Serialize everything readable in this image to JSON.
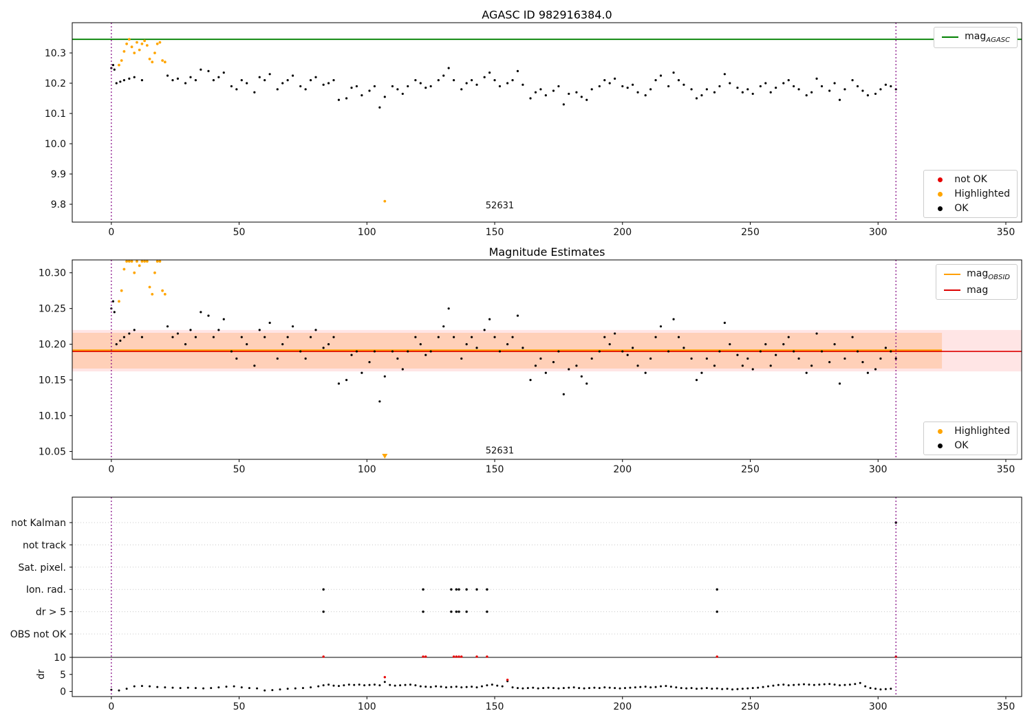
{
  "colors": {
    "ok": "#000000",
    "highlighted": "#ffa500",
    "not_ok": "#e60000",
    "green": "#008000",
    "orange_line": "#ff9f00",
    "red_line": "#dd0000",
    "vline": "#800080",
    "band_red": "rgba(255,0,0,0.10)",
    "band_orange": "rgba(255,160,80,0.30)"
  },
  "legends": [
    {
      "chart": 0,
      "pos": "top-right",
      "items": [
        {
          "marker": "line",
          "color": "green",
          "label": "mag",
          "sub": "AGASC"
        }
      ]
    },
    {
      "chart": 0,
      "pos": "bottom-right",
      "items": [
        {
          "marker": "dot",
          "color": "not_ok",
          "label": "not OK"
        },
        {
          "marker": "dot",
          "color": "highlighted",
          "label": "Highlighted"
        },
        {
          "marker": "dot",
          "color": "ok",
          "label": "OK"
        }
      ]
    },
    {
      "chart": 1,
      "pos": "top-right",
      "items": [
        {
          "marker": "line",
          "color": "orange_line",
          "label": "mag",
          "sub": "OBSID"
        },
        {
          "marker": "line",
          "color": "red_line",
          "label": "mag"
        }
      ]
    },
    {
      "chart": 1,
      "pos": "bottom-right",
      "items": [
        {
          "marker": "dot",
          "color": "highlighted",
          "label": "Highlighted"
        },
        {
          "marker": "dot",
          "color": "ok",
          "label": "OK"
        }
      ]
    }
  ],
  "chart_data": {
    "charts": [
      {
        "title": "AGASC ID 982916384.0",
        "type": "scatter",
        "xlim": [
          -15.3,
          356.2
        ],
        "ylim": [
          9.741,
          10.4
        ],
        "xticks": [
          0,
          50,
          100,
          150,
          200,
          250,
          300,
          350
        ],
        "yticks": [
          [
            9.8,
            "9.8"
          ],
          [
            9.9,
            "9.9"
          ],
          [
            10.0,
            "10.0"
          ],
          [
            10.1,
            "10.1"
          ],
          [
            10.2,
            "10.2"
          ],
          [
            10.3,
            "10.3"
          ]
        ],
        "vlines": [
          0,
          307
        ],
        "bands": [],
        "hlines": [
          {
            "y": 10.345,
            "color": "green",
            "width": 1.8
          }
        ],
        "point_series": [
          {
            "data": "ok_points",
            "color": "#000000",
            "r": 1.6
          },
          {
            "data": "highlighted_points",
            "color": "#ffa500",
            "r": 1.9
          }
        ],
        "annotation": {
          "x": 152,
          "y": 9.787,
          "text": "52631"
        }
      },
      {
        "title": "Magnitude Estimates",
        "type": "scatter",
        "xlim": [
          -15.3,
          356.2
        ],
        "ylim": [
          10.039,
          10.318
        ],
        "xticks": [
          0,
          50,
          100,
          150,
          200,
          250,
          300,
          350
        ],
        "yticks": [
          [
            10.05,
            "10.05"
          ],
          [
            10.1,
            "10.10"
          ],
          [
            10.15,
            "10.15"
          ],
          [
            10.2,
            "10.20"
          ],
          [
            10.25,
            "10.25"
          ],
          [
            10.3,
            "10.30"
          ]
        ],
        "vlines": [
          0,
          307
        ],
        "bands": [
          {
            "x0": -15.3,
            "x1": 356.2,
            "y0": 10.162,
            "y1": 10.22,
            "color": "band_red"
          },
          {
            "x0": -15.3,
            "x1": 325.0,
            "y0": 10.166,
            "y1": 10.216,
            "color": "band_orange"
          }
        ],
        "hlines": [
          {
            "y": 10.191,
            "color": "orange_line",
            "width": 3.5,
            "x0": -15.3,
            "x1": 325.0
          },
          {
            "y": 10.19,
            "color": "red_line",
            "width": 1.6
          }
        ],
        "point_series": [
          {
            "data": "ok_points",
            "color": "#000000",
            "r": 1.6,
            "clip": true
          },
          {
            "data": "highlighted_points",
            "color": "#ffa500",
            "r": 1.9,
            "clip": true
          }
        ],
        "annotation": {
          "x": 152,
          "y": 10.047,
          "text": "52631"
        }
      },
      {
        "title": "",
        "type": "flags",
        "xlim": [
          -15.3,
          356.2
        ],
        "xticks": [
          0,
          50,
          100,
          150,
          200,
          250,
          300,
          350
        ],
        "vlines": [
          0,
          307
        ],
        "rows": [
          "not Kalman",
          "not track",
          "Sat. pixel.",
          "Ion. rad.",
          "dr > 5",
          "OBS not OK"
        ],
        "row_points": {
          "Ion. rad.": "ion_rad_x",
          "dr > 5": "dr5_x",
          "not Kalman": "not_kalman_x"
        },
        "dr_ticks": [
          [
            10,
            "10"
          ],
          [
            5,
            "5"
          ],
          [
            0,
            "0"
          ]
        ],
        "dr_label": "dr",
        "dr_hline": 10
      }
    ],
    "ok_points": [
      [
        0,
        10.25
      ],
      [
        0.7,
        10.26
      ],
      [
        1.2,
        10.245
      ],
      [
        2,
        10.2
      ],
      [
        3.5,
        10.205
      ],
      [
        5,
        10.21
      ],
      [
        7,
        10.215
      ],
      [
        9,
        10.22
      ],
      [
        12,
        10.21
      ],
      [
        22,
        10.225
      ],
      [
        24,
        10.21
      ],
      [
        26,
        10.215
      ],
      [
        29,
        10.2
      ],
      [
        31,
        10.22
      ],
      [
        33,
        10.21
      ],
      [
        35,
        10.245
      ],
      [
        38,
        10.24
      ],
      [
        40,
        10.21
      ],
      [
        42,
        10.22
      ],
      [
        44,
        10.235
      ],
      [
        47,
        10.19
      ],
      [
        49,
        10.18
      ],
      [
        51,
        10.21
      ],
      [
        53,
        10.2
      ],
      [
        56,
        10.17
      ],
      [
        58,
        10.22
      ],
      [
        60,
        10.21
      ],
      [
        62,
        10.23
      ],
      [
        65,
        10.18
      ],
      [
        67,
        10.2
      ],
      [
        69,
        10.21
      ],
      [
        71,
        10.225
      ],
      [
        74,
        10.19
      ],
      [
        76,
        10.18
      ],
      [
        78,
        10.21
      ],
      [
        80,
        10.22
      ],
      [
        83,
        10.195
      ],
      [
        85,
        10.2
      ],
      [
        87,
        10.21
      ],
      [
        89,
        10.145
      ],
      [
        92,
        10.15
      ],
      [
        94,
        10.185
      ],
      [
        96,
        10.19
      ],
      [
        98,
        10.16
      ],
      [
        101,
        10.175
      ],
      [
        103,
        10.19
      ],
      [
        105,
        10.12
      ],
      [
        107,
        10.155
      ],
      [
        110,
        10.19
      ],
      [
        112,
        10.18
      ],
      [
        114,
        10.165
      ],
      [
        116,
        10.19
      ],
      [
        119,
        10.21
      ],
      [
        121,
        10.2
      ],
      [
        123,
        10.185
      ],
      [
        125,
        10.19
      ],
      [
        128,
        10.21
      ],
      [
        130,
        10.225
      ],
      [
        132,
        10.25
      ],
      [
        134,
        10.21
      ],
      [
        137,
        10.18
      ],
      [
        139,
        10.2
      ],
      [
        141,
        10.21
      ],
      [
        143,
        10.195
      ],
      [
        146,
        10.22
      ],
      [
        148,
        10.235
      ],
      [
        150,
        10.21
      ],
      [
        152,
        10.19
      ],
      [
        155,
        10.2
      ],
      [
        157,
        10.21
      ],
      [
        159,
        10.24
      ],
      [
        161,
        10.195
      ],
      [
        164,
        10.15
      ],
      [
        166,
        10.17
      ],
      [
        168,
        10.18
      ],
      [
        170,
        10.16
      ],
      [
        173,
        10.175
      ],
      [
        175,
        10.19
      ],
      [
        177,
        10.13
      ],
      [
        179,
        10.165
      ],
      [
        182,
        10.17
      ],
      [
        184,
        10.155
      ],
      [
        186,
        10.145
      ],
      [
        188,
        10.18
      ],
      [
        191,
        10.19
      ],
      [
        193,
        10.21
      ],
      [
        195,
        10.2
      ],
      [
        197,
        10.215
      ],
      [
        200,
        10.19
      ],
      [
        202,
        10.185
      ],
      [
        204,
        10.195
      ],
      [
        206,
        10.17
      ],
      [
        209,
        10.16
      ],
      [
        211,
        10.18
      ],
      [
        213,
        10.21
      ],
      [
        215,
        10.225
      ],
      [
        218,
        10.19
      ],
      [
        220,
        10.235
      ],
      [
        222,
        10.21
      ],
      [
        224,
        10.195
      ],
      [
        227,
        10.18
      ],
      [
        229,
        10.15
      ],
      [
        231,
        10.16
      ],
      [
        233,
        10.18
      ],
      [
        236,
        10.17
      ],
      [
        238,
        10.19
      ],
      [
        240,
        10.23
      ],
      [
        242,
        10.2
      ],
      [
        245,
        10.185
      ],
      [
        247,
        10.17
      ],
      [
        249,
        10.18
      ],
      [
        251,
        10.165
      ],
      [
        254,
        10.19
      ],
      [
        256,
        10.2
      ],
      [
        258,
        10.17
      ],
      [
        260,
        10.185
      ],
      [
        263,
        10.2
      ],
      [
        265,
        10.21
      ],
      [
        267,
        10.19
      ],
      [
        269,
        10.18
      ],
      [
        272,
        10.16
      ],
      [
        274,
        10.17
      ],
      [
        276,
        10.215
      ],
      [
        278,
        10.19
      ],
      [
        281,
        10.175
      ],
      [
        283,
        10.2
      ],
      [
        285,
        10.145
      ],
      [
        287,
        10.18
      ],
      [
        290,
        10.21
      ],
      [
        292,
        10.19
      ],
      [
        294,
        10.175
      ],
      [
        296,
        10.16
      ],
      [
        299,
        10.165
      ],
      [
        301,
        10.18
      ],
      [
        303,
        10.195
      ],
      [
        305,
        10.19
      ],
      [
        307,
        10.18
      ]
    ],
    "highlighted_points": [
      [
        3,
        10.26
      ],
      [
        4,
        10.275
      ],
      [
        5,
        10.305
      ],
      [
        6,
        10.33
      ],
      [
        7,
        10.345
      ],
      [
        8,
        10.32
      ],
      [
        9,
        10.3
      ],
      [
        10,
        10.335
      ],
      [
        11,
        10.31
      ],
      [
        12,
        10.33
      ],
      [
        13,
        10.34
      ],
      [
        14,
        10.325
      ],
      [
        15,
        10.28
      ],
      [
        16,
        10.27
      ],
      [
        17,
        10.3
      ],
      [
        18,
        10.33
      ],
      [
        19,
        10.335
      ],
      [
        20,
        10.275
      ],
      [
        21,
        10.27
      ],
      [
        107,
        9.81
      ]
    ],
    "ion_rad_x": [
      83,
      122,
      133,
      135,
      136,
      139,
      143,
      147,
      237
    ],
    "dr5_x": [
      83,
      122,
      133,
      135,
      136,
      139,
      147,
      237
    ],
    "not_kalman_x": [
      307
    ],
    "dr_points": [
      [
        0,
        0.5
      ],
      [
        3,
        0.3
      ],
      [
        6,
        0.8
      ],
      [
        9,
        1.5
      ],
      [
        12,
        1.6
      ],
      [
        15,
        1.5
      ],
      [
        18,
        1.3
      ],
      [
        21,
        1.2
      ],
      [
        24,
        1.1
      ],
      [
        27,
        1.0
      ],
      [
        30,
        1.1
      ],
      [
        33,
        1.0
      ],
      [
        36,
        0.9
      ],
      [
        39,
        1.0
      ],
      [
        42,
        1.2
      ],
      [
        45,
        1.4
      ],
      [
        48,
        1.5
      ],
      [
        51,
        1.2
      ],
      [
        54,
        1.0
      ],
      [
        57,
        0.9
      ],
      [
        60,
        0.3
      ],
      [
        63,
        0.4
      ],
      [
        66,
        0.6
      ],
      [
        69,
        0.8
      ],
      [
        72,
        0.9
      ],
      [
        75,
        1.0
      ],
      [
        78,
        1.2
      ],
      [
        81,
        1.5
      ],
      [
        83,
        1.8
      ],
      [
        85,
        2.0
      ],
      [
        87,
        1.7
      ],
      [
        89,
        1.6
      ],
      [
        91,
        1.8
      ],
      [
        93,
        2.0
      ],
      [
        95,
        1.9
      ],
      [
        97,
        2.0
      ],
      [
        99,
        1.8
      ],
      [
        101,
        1.9
      ],
      [
        103,
        2.0
      ],
      [
        105,
        1.8
      ],
      [
        107,
        2.8
      ],
      [
        109,
        1.9
      ],
      [
        111,
        1.7
      ],
      [
        113,
        1.8
      ],
      [
        115,
        1.9
      ],
      [
        117,
        2.0
      ],
      [
        119,
        1.8
      ],
      [
        121,
        1.5
      ],
      [
        123,
        1.4
      ],
      [
        125,
        1.3
      ],
      [
        127,
        1.5
      ],
      [
        129,
        1.4
      ],
      [
        131,
        1.2
      ],
      [
        133,
        1.3
      ],
      [
        135,
        1.4
      ],
      [
        137,
        1.2
      ],
      [
        139,
        1.3
      ],
      [
        141,
        1.4
      ],
      [
        143,
        1.2
      ],
      [
        145,
        1.5
      ],
      [
        147,
        1.8
      ],
      [
        149,
        2.0
      ],
      [
        151,
        1.7
      ],
      [
        153,
        1.5
      ],
      [
        155,
        3.0
      ],
      [
        157,
        1.2
      ],
      [
        159,
        1.0
      ],
      [
        161,
        0.9
      ],
      [
        163,
        1.0
      ],
      [
        165,
        1.1
      ],
      [
        167,
        0.9
      ],
      [
        169,
        1.0
      ],
      [
        171,
        1.1
      ],
      [
        173,
        1.0
      ],
      [
        175,
        0.9
      ],
      [
        177,
        1.0
      ],
      [
        179,
        1.1
      ],
      [
        181,
        1.2
      ],
      [
        183,
        1.0
      ],
      [
        185,
        0.9
      ],
      [
        187,
        1.0
      ],
      [
        189,
        1.1
      ],
      [
        191,
        1.0
      ],
      [
        193,
        1.2
      ],
      [
        195,
        1.1
      ],
      [
        197,
        1.0
      ],
      [
        199,
        0.9
      ],
      [
        201,
        1.0
      ],
      [
        203,
        1.1
      ],
      [
        205,
        1.2
      ],
      [
        207,
        1.3
      ],
      [
        209,
        1.4
      ],
      [
        211,
        1.2
      ],
      [
        213,
        1.3
      ],
      [
        215,
        1.5
      ],
      [
        217,
        1.6
      ],
      [
        219,
        1.4
      ],
      [
        221,
        1.2
      ],
      [
        223,
        1.0
      ],
      [
        225,
        0.9
      ],
      [
        227,
        1.0
      ],
      [
        229,
        0.8
      ],
      [
        231,
        0.9
      ],
      [
        233,
        1.0
      ],
      [
        235,
        0.8
      ],
      [
        237,
        0.9
      ],
      [
        239,
        0.7
      ],
      [
        241,
        0.8
      ],
      [
        243,
        0.6
      ],
      [
        245,
        0.7
      ],
      [
        247,
        0.8
      ],
      [
        249,
        0.9
      ],
      [
        251,
        1.0
      ],
      [
        253,
        1.1
      ],
      [
        255,
        1.3
      ],
      [
        257,
        1.5
      ],
      [
        259,
        1.7
      ],
      [
        261,
        1.9
      ],
      [
        263,
        2.0
      ],
      [
        265,
        1.8
      ],
      [
        267,
        1.9
      ],
      [
        269,
        2.0
      ],
      [
        271,
        2.1
      ],
      [
        273,
        2.0
      ],
      [
        275,
        1.9
      ],
      [
        277,
        2.0
      ],
      [
        279,
        2.1
      ],
      [
        281,
        2.2
      ],
      [
        283,
        2.0
      ],
      [
        285,
        1.8
      ],
      [
        287,
        1.9
      ],
      [
        289,
        2.0
      ],
      [
        291,
        2.2
      ],
      [
        293,
        2.5
      ],
      [
        295,
        1.5
      ],
      [
        297,
        1.0
      ],
      [
        299,
        0.8
      ],
      [
        301,
        0.6
      ],
      [
        303,
        0.7
      ],
      [
        305,
        0.8
      ]
    ],
    "dr_red_points": [
      [
        107,
        4.2
      ],
      [
        155,
        3.4
      ]
    ],
    "dr_red_clipped_x": [
      83,
      122,
      123,
      134,
      135,
      136,
      137,
      143,
      147,
      237,
      307
    ]
  }
}
